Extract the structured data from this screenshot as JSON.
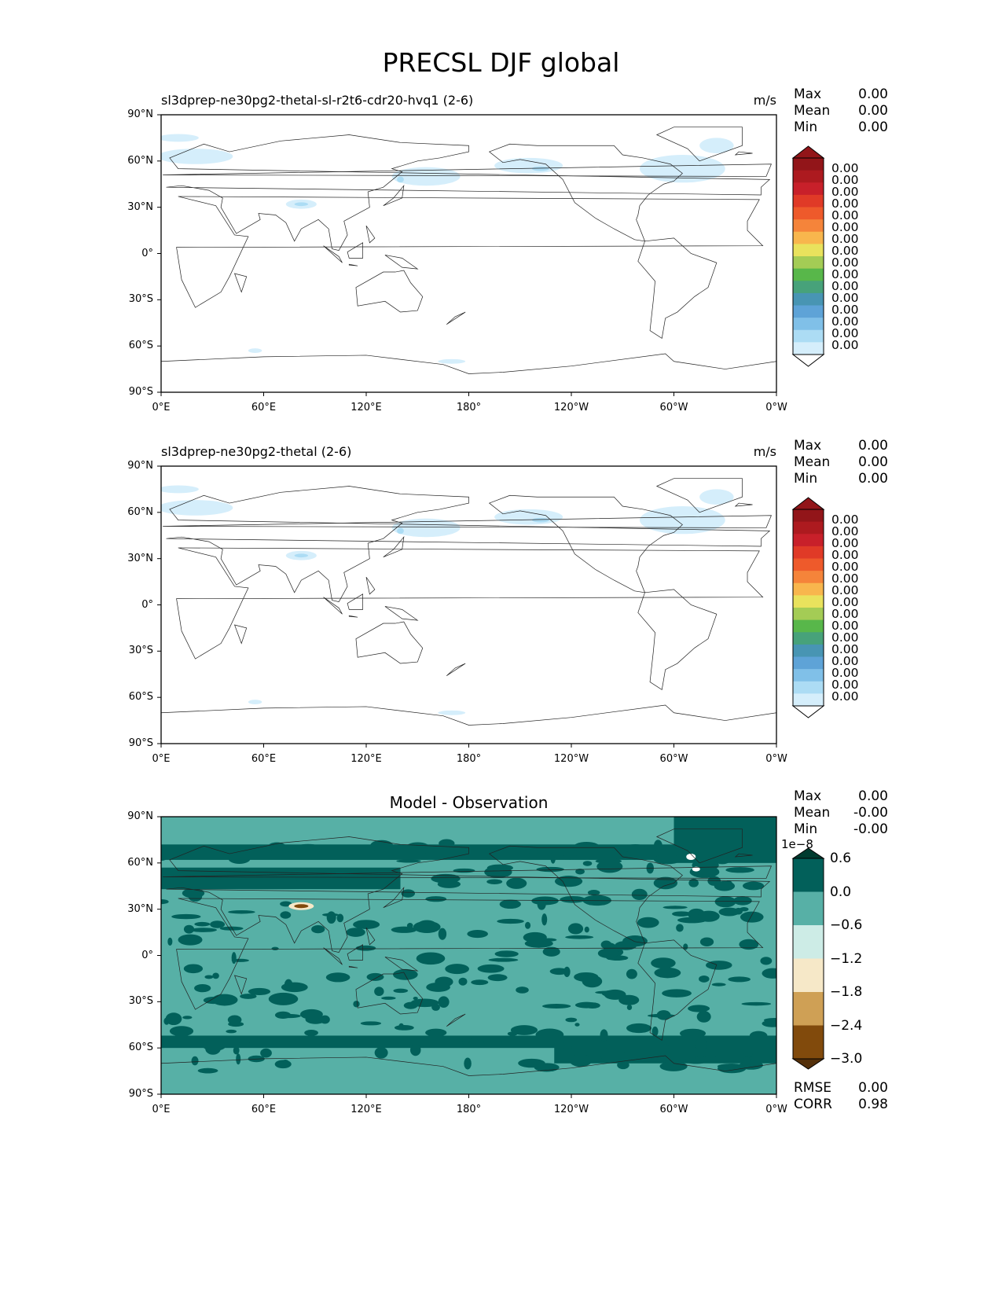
{
  "title": "PRECSL DJF global",
  "x_ticks": [
    "0°E",
    "60°E",
    "120°E",
    "180°",
    "120°W",
    "60°W",
    "0°W"
  ],
  "y_ticks": [
    "90°N",
    "60°N",
    "30°N",
    "0°",
    "30°S",
    "60°S",
    "90°S"
  ],
  "panels": [
    {
      "title": "sl3dprep-ne30pg2-thetal-sl-r2t6-cdr20-hvq1 (2-6)",
      "units": "m/s",
      "stats": {
        "max_label": "Max",
        "max": "0.00",
        "mean_label": "Mean",
        "mean": "0.00",
        "min_label": "Min",
        "min": "0.00"
      },
      "colorbar_labels": [
        "0.00",
        "0.00",
        "0.00",
        "0.00",
        "0.00",
        "0.00",
        "0.00",
        "0.00",
        "0.00",
        "0.00",
        "0.00",
        "0.00",
        "0.00",
        "0.00",
        "0.00",
        "0.00"
      ]
    },
    {
      "title": "sl3dprep-ne30pg2-thetal (2-6)",
      "units": "m/s",
      "stats": {
        "max_label": "Max",
        "max": "0.00",
        "mean_label": "Mean",
        "mean": "0.00",
        "min_label": "Min",
        "min": "0.00"
      },
      "colorbar_labels": [
        "0.00",
        "0.00",
        "0.00",
        "0.00",
        "0.00",
        "0.00",
        "0.00",
        "0.00",
        "0.00",
        "0.00",
        "0.00",
        "0.00",
        "0.00",
        "0.00",
        "0.00",
        "0.00"
      ]
    },
    {
      "title": "Model - Observation",
      "stats": {
        "max_label": "Max",
        "max": "0.00",
        "mean_label": "Mean",
        "mean": "-0.00",
        "min_label": "Min",
        "min": "-0.00"
      },
      "colorbar_exponent": "1e−8",
      "colorbar_labels": [
        "0.6",
        "0.0",
        "−0.6",
        "−1.2",
        "−1.8",
        "−2.4",
        "−3.0"
      ],
      "rmse_label": "RMSE",
      "rmse": "0.00",
      "corr_label": "CORR",
      "corr": "0.98"
    }
  ],
  "colors": {
    "precip_cmap": [
      "#ffffff",
      "#d5eefb",
      "#acdcf4",
      "#80c0e8",
      "#5ea3d7",
      "#4895b3",
      "#47a27a",
      "#58b74a",
      "#a4cc55",
      "#e9e25d",
      "#f8b64d",
      "#f5843a",
      "#ee5a2b",
      "#e03a27",
      "#c8202a",
      "#ad1a1f",
      "#921519"
    ],
    "diff_cmap": [
      "#54300a",
      "#814a0c",
      "#cfa055",
      "#f6e8c8",
      "#cdece6",
      "#57b0a6",
      "#02605a",
      "#003c30"
    ]
  },
  "chart_data": {
    "type": "heatmap",
    "title": "PRECSL DJF global",
    "xlabel": "",
    "ylabel": "",
    "xlim": [
      0,
      360
    ],
    "ylim": [
      -90,
      90
    ],
    "diff_levels": [
      -3.0,
      -2.4,
      -1.8,
      -1.2,
      -0.6,
      0.0,
      0.6
    ],
    "diff_scale": 1e-08
  }
}
